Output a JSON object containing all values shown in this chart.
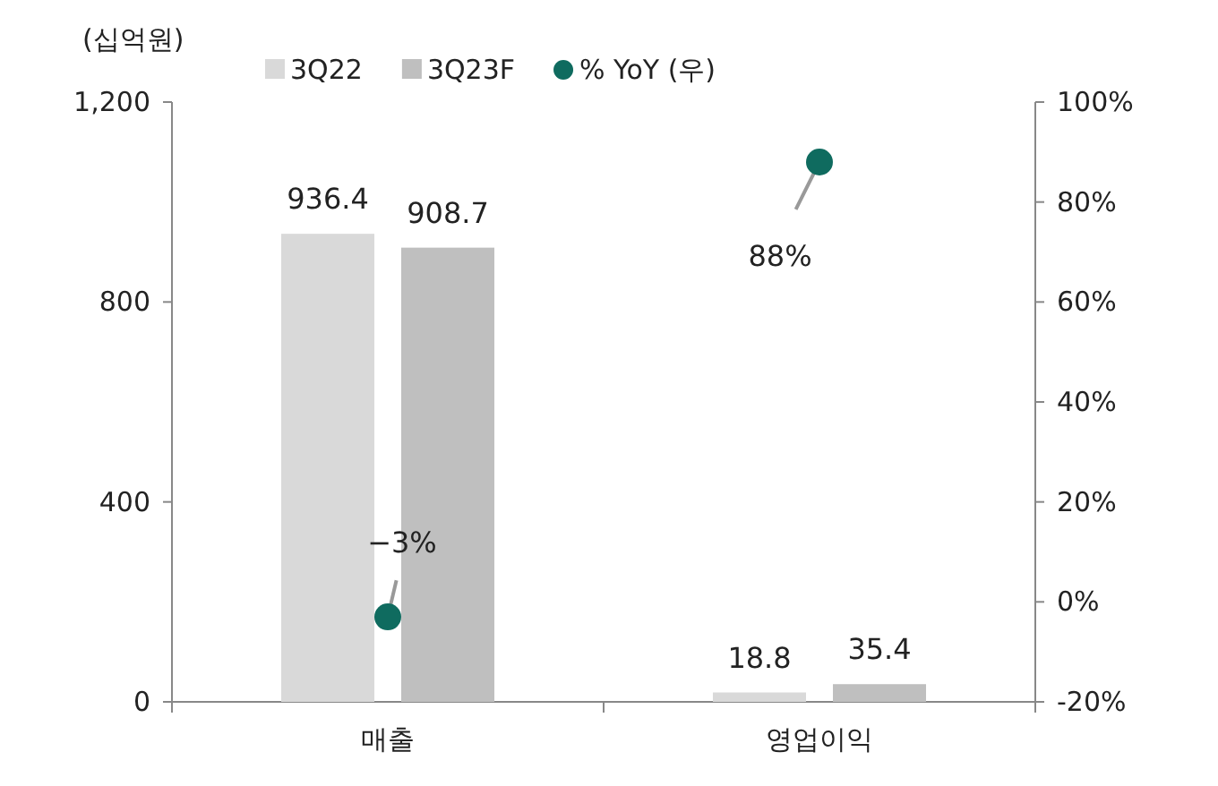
{
  "chart_data": {
    "type": "bar",
    "ylabel": "(십억원)",
    "categories": [
      "매출",
      "영업이익"
    ],
    "series": [
      {
        "name": "3Q22",
        "color": "#d9d9d9",
        "values": [
          936.4,
          18.8
        ]
      },
      {
        "name": "3Q23F",
        "color": "#bfbfbf",
        "values": [
          908.7,
          35.4
        ]
      },
      {
        "name": "% YoY (우)",
        "type": "scatter",
        "axis": "y2",
        "marker": "circle",
        "color": "#0f6b5f",
        "values": [
          -3,
          88
        ],
        "value_labels": [
          "−3%",
          "88%"
        ]
      }
    ],
    "ylim": [
      0,
      1200
    ],
    "yticks": [
      0,
      400,
      800,
      {
        "value": 1200,
        "label": "1,200"
      }
    ],
    "y2lim": [
      -20,
      100
    ],
    "y2ticks": [
      {
        "value": -20,
        "label": "-20%"
      },
      {
        "value": 0,
        "label": "0%"
      },
      {
        "value": 20,
        "label": "20%"
      },
      {
        "value": 40,
        "label": "40%"
      },
      {
        "value": 60,
        "label": "60%"
      },
      {
        "value": 80,
        "label": "80%"
      },
      {
        "value": 100,
        "label": "100%"
      }
    ],
    "data_labels": true,
    "legend": "top",
    "grid": false
  }
}
